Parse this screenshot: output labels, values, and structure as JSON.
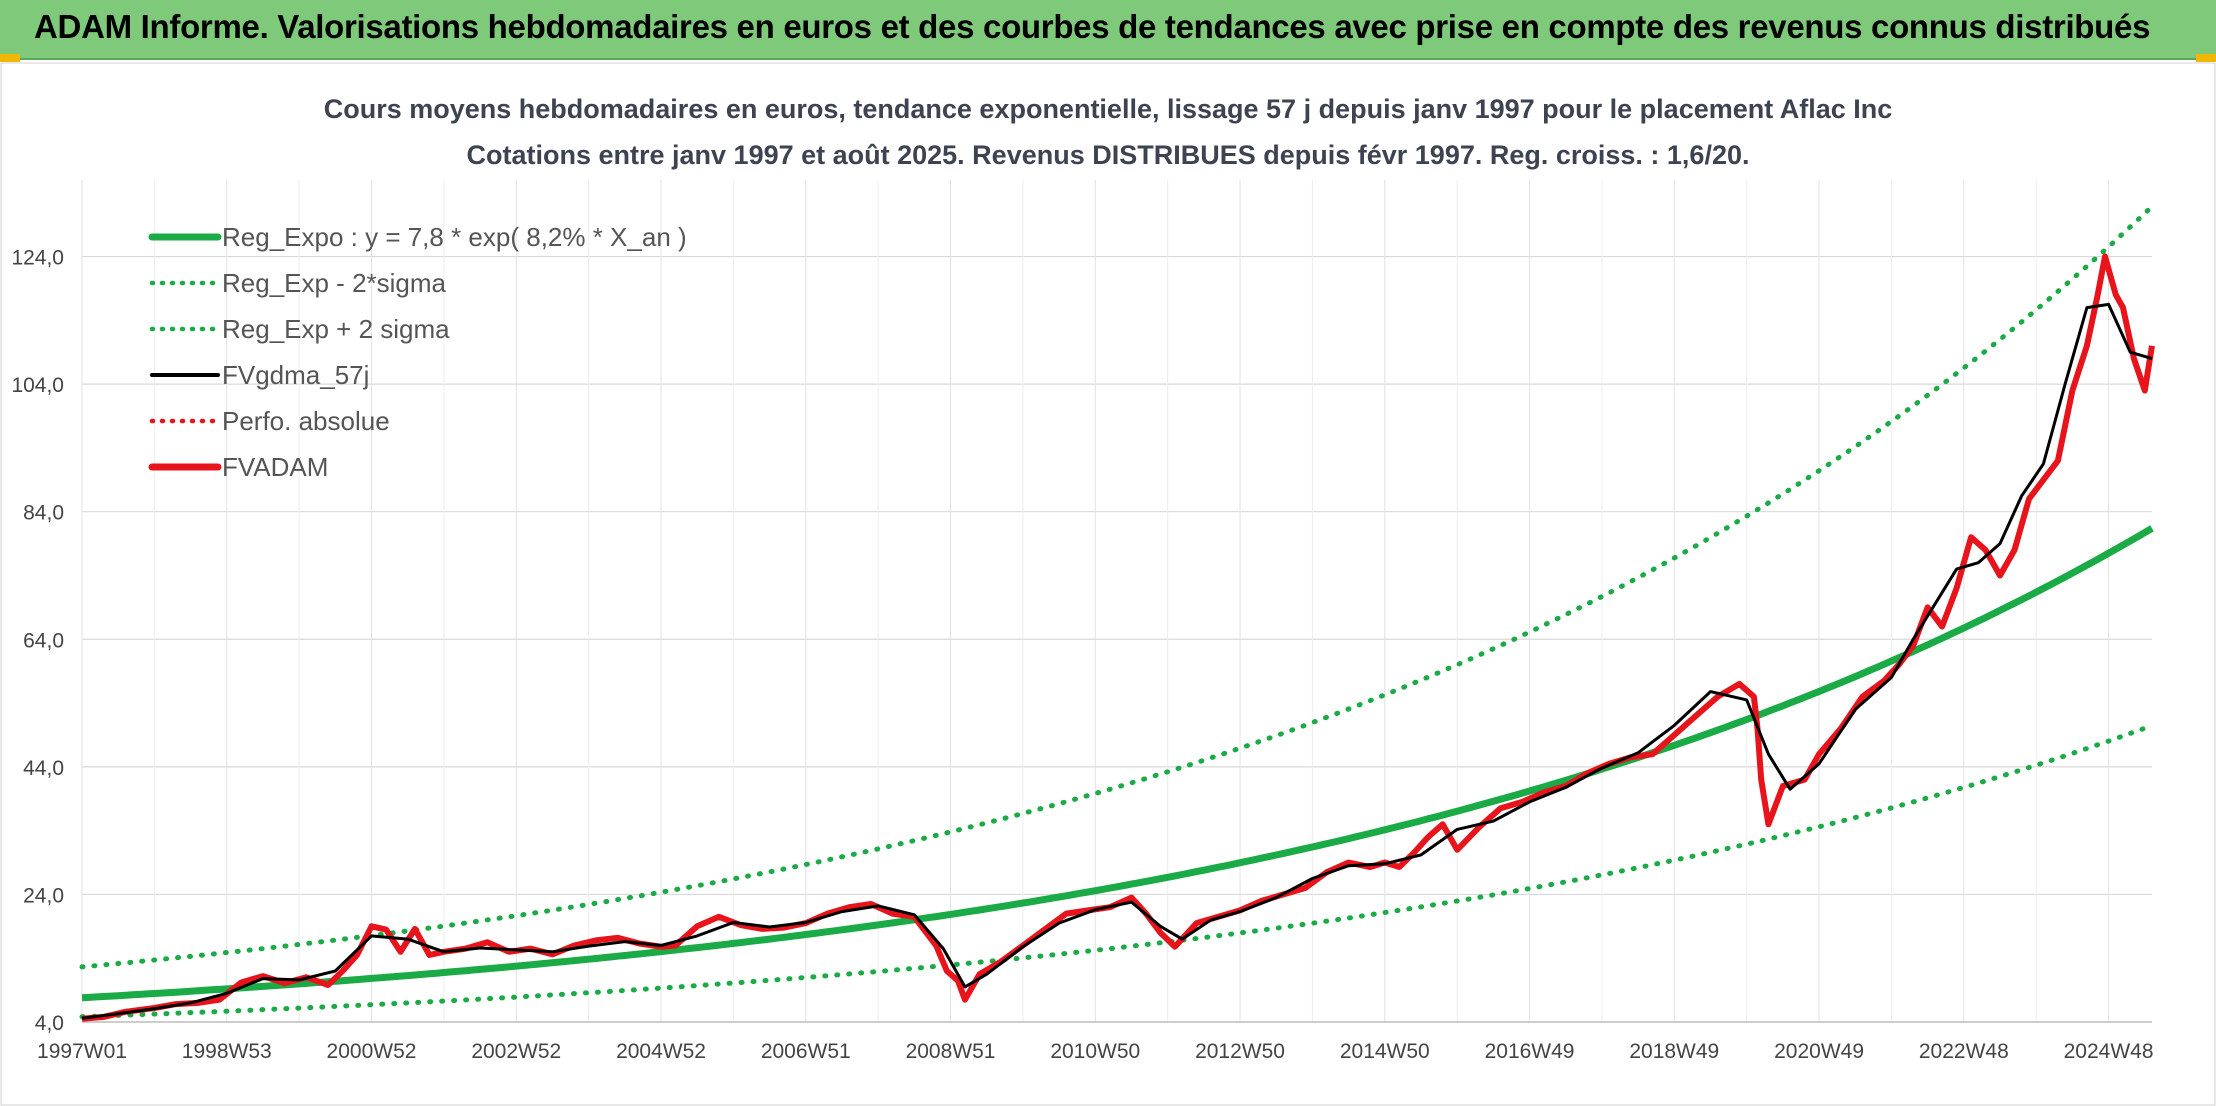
{
  "header": {
    "title": "ADAM Informe. Valorisations hebdomadaires en euros et des courbes de tendances avec prise en compte des revenus connus distribués"
  },
  "chart_data": {
    "type": "line",
    "title": "Cours moyens hebdomadaires en euros, tendance exponentielle, lissage 57 j depuis janv 1997 pour le placement Aflac Inc",
    "subtitle": "Cotations entre janv 1997 et août 2025. Revenus DISTRIBUES depuis févr 1997. Reg. croiss. : 1,6/20.",
    "xlabel": "",
    "ylabel": "",
    "xlim": [
      1997.0,
      2025.6
    ],
    "ylim": [
      4,
      136
    ],
    "y_ticks": [
      "4,0",
      "24,0",
      "44,0",
      "64,0",
      "84,0",
      "104,0",
      "124,0"
    ],
    "y_tick_values": [
      4,
      24,
      44,
      64,
      84,
      104,
      124
    ],
    "x_ticks": [
      "1997W01",
      "1998W53",
      "2000W52",
      "2002W52",
      "2004W52",
      "2006W51",
      "2008W51",
      "2010W50",
      "2012W50",
      "2014W50",
      "2016W49",
      "2018W49",
      "2020W49",
      "2022W48",
      "2024W48"
    ],
    "x_tick_values": [
      1997.0,
      1999.0,
      2001.0,
      2003.0,
      2005.0,
      2007.0,
      2009.0,
      2011.0,
      2013.0,
      2015.0,
      2017.0,
      2019.0,
      2021.0,
      2023.0,
      2025.0
    ],
    "grid": true,
    "legend_position": "top-left",
    "legend": [
      {
        "label": "Reg_Expo : y = 7,8 * exp( 8,2% *  X_an )",
        "color": "#1aaa46",
        "style": "solid-thick"
      },
      {
        "label": "Reg_Exp - 2*sigma",
        "color": "#1aaa46",
        "style": "dotted"
      },
      {
        "label": "Reg_Exp + 2 sigma",
        "color": "#1aaa46",
        "style": "dotted"
      },
      {
        "label": "FVgdma_57j",
        "color": "#000000",
        "style": "solid"
      },
      {
        "label": "Perfo. absolue",
        "color": "#e8141b",
        "style": "dotted"
      },
      {
        "label": "FVADAM",
        "color": "#e8141b",
        "style": "solid-thick"
      }
    ],
    "regression": {
      "a": 7.8,
      "rate": 0.082,
      "lower_factor": 0.62,
      "upper_factor": 1.62
    },
    "series": [
      {
        "name": "FVADAM",
        "color": "#e8141b",
        "x": [
          1997.0,
          1997.3,
          1997.6,
          1998.0,
          1998.3,
          1998.6,
          1998.9,
          1999.2,
          1999.5,
          1999.8,
          2000.1,
          2000.4,
          2000.6,
          2000.8,
          2001.0,
          2001.2,
          2001.4,
          2001.6,
          2001.8,
          2002.0,
          2002.3,
          2002.6,
          2002.9,
          2003.2,
          2003.5,
          2003.8,
          2004.1,
          2004.4,
          2004.7,
          2005.0,
          2005.2,
          2005.5,
          2005.8,
          2006.1,
          2006.4,
          2006.7,
          2007.0,
          2007.3,
          2007.6,
          2007.9,
          2008.2,
          2008.5,
          2008.8,
          2008.95,
          2009.1,
          2009.2,
          2009.4,
          2009.7,
          2010.0,
          2010.3,
          2010.6,
          2010.9,
          2011.2,
          2011.5,
          2011.7,
          2011.9,
          2012.1,
          2012.4,
          2012.7,
          2013.0,
          2013.3,
          2013.6,
          2013.9,
          2014.2,
          2014.5,
          2014.8,
          2015.0,
          2015.2,
          2015.4,
          2015.6,
          2015.8,
          2016.0,
          2016.3,
          2016.6,
          2016.9,
          2017.2,
          2017.5,
          2017.8,
          2018.1,
          2018.4,
          2018.7,
          2019.0,
          2019.3,
          2019.6,
          2019.9,
          2020.1,
          2020.15,
          2020.2,
          2020.3,
          2020.5,
          2020.8,
          2021.0,
          2021.3,
          2021.6,
          2021.9,
          2022.1,
          2022.3,
          2022.5,
          2022.7,
          2022.9,
          2023.1,
          2023.3,
          2023.5,
          2023.7,
          2023.9,
          2024.1,
          2024.3,
          2024.5,
          2024.7,
          2024.85,
          2024.95,
          2025.1,
          2025.2,
          2025.35,
          2025.5,
          2025.6
        ],
        "values": [
          4.5,
          4.8,
          5.6,
          6.2,
          6.8,
          7.0,
          7.5,
          10.2,
          11.2,
          10.1,
          11.0,
          9.8,
          12.0,
          14.5,
          19.0,
          18.5,
          15.0,
          18.6,
          14.5,
          15.0,
          15.5,
          16.5,
          15.0,
          15.5,
          14.6,
          16.0,
          16.8,
          17.2,
          16.3,
          15.8,
          16.0,
          19.0,
          20.5,
          19.2,
          18.6,
          18.8,
          19.5,
          21.0,
          22.0,
          22.5,
          21.0,
          20.5,
          16.0,
          12.0,
          10.5,
          7.5,
          11.5,
          13.5,
          16.0,
          18.5,
          21.0,
          21.5,
          22.0,
          23.5,
          21.0,
          18.0,
          15.8,
          19.5,
          20.5,
          21.5,
          23.0,
          24.0,
          25.0,
          27.5,
          29.0,
          28.3,
          29.0,
          28.3,
          30.5,
          33.0,
          35.0,
          31.0,
          34.5,
          37.5,
          38.5,
          40.0,
          41.0,
          43.0,
          44.5,
          45.5,
          46.0,
          49.0,
          52.0,
          55.0,
          57.0,
          55.0,
          50.0,
          42.0,
          35.0,
          41.0,
          42.0,
          46.0,
          50.0,
          55.0,
          57.5,
          60.0,
          63.0,
          69.0,
          66.0,
          72.0,
          80.0,
          78.0,
          74.0,
          78.0,
          86.0,
          89.0,
          92.0,
          103.0,
          110.0,
          118.0,
          124.0,
          118.0,
          116.0,
          108.0,
          103.0,
          110.0
        ]
      },
      {
        "name": "FVgdma_57j",
        "color": "#000000",
        "x": [
          1997.0,
          1997.5,
          1998.0,
          1998.5,
          1999.0,
          1999.5,
          2000.0,
          2000.5,
          2001.0,
          2001.5,
          2002.0,
          2002.5,
          2003.0,
          2003.5,
          2004.0,
          2004.5,
          2005.0,
          2005.5,
          2006.0,
          2006.5,
          2007.0,
          2007.5,
          2008.0,
          2008.5,
          2008.9,
          2009.2,
          2009.5,
          2010.0,
          2010.5,
          2011.0,
          2011.5,
          2011.9,
          2012.2,
          2012.6,
          2013.0,
          2013.5,
          2014.0,
          2014.5,
          2015.0,
          2015.5,
          2016.0,
          2016.5,
          2017.0,
          2017.5,
          2018.0,
          2018.5,
          2019.0,
          2019.5,
          2020.0,
          2020.3,
          2020.6,
          2021.0,
          2021.5,
          2022.0,
          2022.3,
          2022.6,
          2022.9,
          2023.2,
          2023.5,
          2023.8,
          2024.1,
          2024.4,
          2024.7,
          2025.0,
          2025.3,
          2025.6
        ],
        "values": [
          4.6,
          5.3,
          6.1,
          7.0,
          8.5,
          10.8,
          10.6,
          12.0,
          17.5,
          17.0,
          15.0,
          15.6,
          15.3,
          15.0,
          15.9,
          16.6,
          16.0,
          17.5,
          19.6,
          18.9,
          19.6,
          21.3,
          22.2,
          20.8,
          15.5,
          9.5,
          11.5,
          15.8,
          19.5,
          21.6,
          22.8,
          19.0,
          17.0,
          20.0,
          21.3,
          23.5,
          26.5,
          28.5,
          28.8,
          30.2,
          34.2,
          35.5,
          38.5,
          40.8,
          43.8,
          46.2,
          50.5,
          55.8,
          54.5,
          46.0,
          40.5,
          44.5,
          53.0,
          58.0,
          64.0,
          69.5,
          75.0,
          76.0,
          79.0,
          86.5,
          91.5,
          104.0,
          116.0,
          116.5,
          109.0,
          108.0
        ]
      }
    ]
  }
}
